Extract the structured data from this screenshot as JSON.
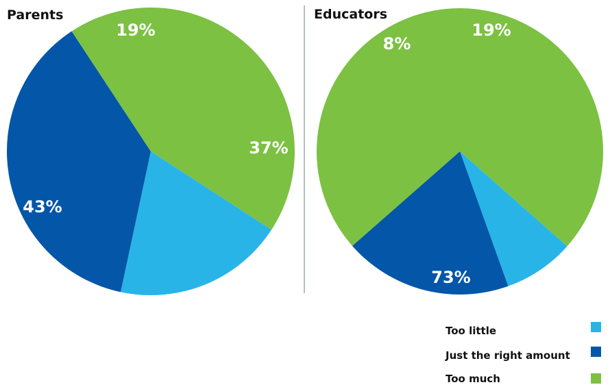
{
  "chart_data": [
    {
      "type": "pie",
      "title": "Parents",
      "categories": [
        "Too little",
        "Just the right amount",
        "Too much"
      ],
      "values": [
        19,
        37,
        43
      ],
      "labels": [
        "19%",
        "37%",
        "43%"
      ]
    },
    {
      "type": "pie",
      "title": "Educators",
      "categories": [
        "Too little",
        "Just the right amount",
        "Too much"
      ],
      "values": [
        8,
        19,
        73
      ],
      "labels": [
        "8%",
        "19%",
        "73%"
      ]
    }
  ],
  "legend": {
    "position": "bottom-right",
    "items": [
      {
        "label": "Too little",
        "color": "#29b4e8"
      },
      {
        "label": "Just the right amount",
        "color": "#0356a8"
      },
      {
        "label": "Too much",
        "color": "#7cc142"
      }
    ]
  },
  "colors": {
    "too_little": "#29b4e8",
    "just_right": "#0356a8",
    "too_much": "#7cc142",
    "divider": "#9aa5ae"
  }
}
